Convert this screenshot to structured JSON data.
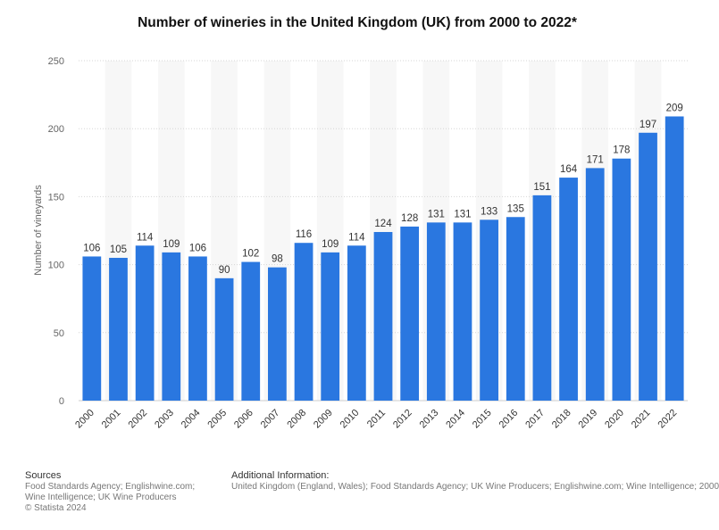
{
  "title": "Number of wineries in the United Kingdom (UK) from 2000 to 2022*",
  "footer": {
    "sources_heading": "Sources",
    "sources_text": "Food Standards Agency; Englishwine.com; Wine Intelligence; UK Wine Producers",
    "copyright": "© Statista 2024",
    "additional_heading": "Additional Information:",
    "additional_text": "United Kingdom (England, Wales); Food Standards Agency; UK Wine Producers; Englishwine.com; Wine Intelligence; 2000"
  },
  "chart_data": {
    "type": "bar",
    "title": "Number of wineries in the United Kingdom (UK) from 2000 to 2022*",
    "xlabel": "",
    "ylabel": "Number of vineyards",
    "ylim": [
      0,
      250
    ],
    "yticks": [
      0,
      50,
      100,
      150,
      200,
      250
    ],
    "grid": true,
    "bar_color": "#2a77e0",
    "categories": [
      "2000",
      "2001",
      "2002",
      "2003",
      "2004",
      "2005",
      "2006",
      "2007",
      "2008",
      "2009",
      "2010",
      "2011",
      "2012",
      "2013",
      "2014",
      "2015",
      "2016",
      "2017",
      "2018",
      "2019",
      "2020",
      "2021",
      "2022"
    ],
    "values": [
      106,
      105,
      114,
      109,
      106,
      90,
      102,
      98,
      116,
      109,
      114,
      124,
      128,
      131,
      131,
      133,
      135,
      151,
      164,
      171,
      178,
      197,
      209
    ]
  }
}
